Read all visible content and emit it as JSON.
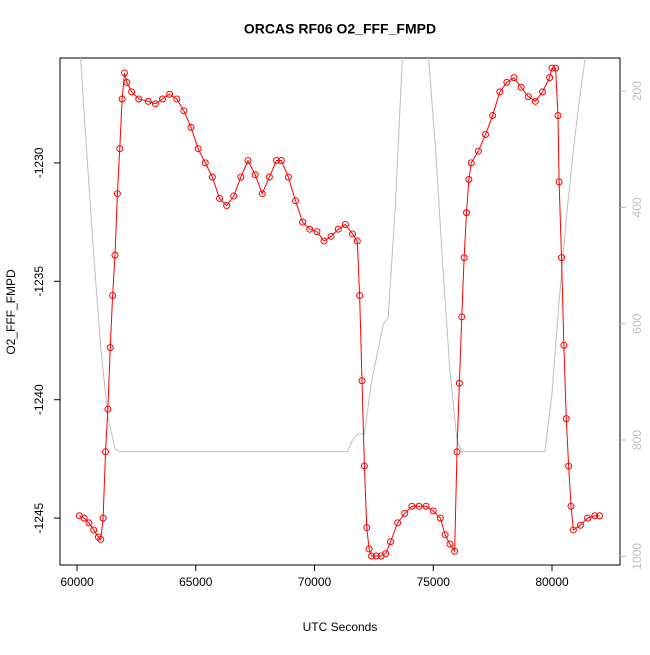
{
  "chart_data": {
    "type": "scatter",
    "title": "ORCAS RF06 O2_FFF_FMPD",
    "x_label": "UTC Seconds",
    "y_label": "O2_FFF_FMPD",
    "xlim": [
      59284,
      82863
    ],
    "xticks": [
      60000,
      65000,
      70000,
      75000,
      80000
    ],
    "ylim": [
      -1246.98,
      -1225.57
    ],
    "yticks": [
      -1245,
      -1240,
      -1235,
      -1230
    ],
    "y2lim": [
      1015,
      143
    ],
    "y2ticks": [
      200,
      400,
      600,
      800,
      1000
    ],
    "series": [
      {
        "color": "#ff0000",
        "marker": "circle",
        "x": [
          60100,
          60300,
          60500,
          60700,
          60900,
          61000,
          61100,
          61200,
          61300,
          61400,
          61500,
          61600,
          61700,
          61800,
          61900,
          62000,
          62100,
          62300,
          62600,
          63000,
          63300,
          63600,
          63900,
          64200,
          64500,
          64800,
          65100,
          65400,
          65700,
          66000,
          66300,
          66600,
          66900,
          67200,
          67500,
          67800,
          68100,
          68400,
          68600,
          68900,
          69200,
          69500,
          69800,
          70100,
          70400,
          70700,
          71000,
          71300,
          71600,
          71800,
          71900,
          72000,
          72100,
          72200,
          72300,
          72400,
          72600,
          72800,
          73000,
          73200,
          73500,
          73800,
          74100,
          74400,
          74700,
          75000,
          75300,
          75500,
          75700,
          75900,
          76000,
          76100,
          76200,
          76300,
          76400,
          76500,
          76600,
          76900,
          77200,
          77500,
          77800,
          78100,
          78400,
          78700,
          79000,
          79300,
          79600,
          79900,
          80000,
          80150,
          80250,
          80300,
          80400,
          80500,
          80600,
          80700,
          80800,
          80900,
          81200,
          81500,
          81800,
          82000
        ],
        "values": [
          -1244.9,
          -1245.0,
          -1245.2,
          -1245.5,
          -1245.8,
          -1245.9,
          -1245.0,
          -1242.2,
          -1240.4,
          -1237.8,
          -1235.6,
          -1233.9,
          -1231.3,
          -1229.4,
          -1227.3,
          -1226.2,
          -1226.6,
          -1227.0,
          -1227.3,
          -1227.4,
          -1227.5,
          -1227.3,
          -1227.1,
          -1227.3,
          -1227.8,
          -1228.5,
          -1229.4,
          -1230.0,
          -1230.6,
          -1231.5,
          -1231.8,
          -1231.4,
          -1230.6,
          -1229.9,
          -1230.5,
          -1231.3,
          -1230.6,
          -1229.9,
          -1229.9,
          -1230.6,
          -1231.6,
          -1232.5,
          -1232.8,
          -1232.9,
          -1233.3,
          -1233.1,
          -1232.8,
          -1232.6,
          -1233.0,
          -1233.3,
          -1235.6,
          -1239.2,
          -1242.8,
          -1245.4,
          -1246.3,
          -1246.6,
          -1246.6,
          -1246.6,
          -1246.5,
          -1246.0,
          -1245.2,
          -1244.8,
          -1244.5,
          -1244.5,
          -1244.5,
          -1244.7,
          -1245.0,
          -1245.7,
          -1246.1,
          -1246.4,
          -1242.2,
          -1239.3,
          -1236.5,
          -1234.0,
          -1232.1,
          -1230.7,
          -1230.0,
          -1229.5,
          -1228.8,
          -1228.0,
          -1227.0,
          -1226.6,
          -1226.4,
          -1226.8,
          -1227.2,
          -1227.4,
          -1227.0,
          -1226.4,
          -1226.0,
          -1226.0,
          -1228.0,
          -1230.8,
          -1234.0,
          -1237.7,
          -1240.8,
          -1242.8,
          -1244.5,
          -1245.5,
          -1245.3,
          -1245.0,
          -1244.9,
          -1244.9
        ]
      },
      {
        "color": "#bebebe",
        "marker": "none",
        "axis": "y2",
        "x": [
          60150,
          60400,
          60700,
          61000,
          61300,
          61600,
          61800,
          71400,
          71600,
          71800,
          72100,
          72400,
          72900,
          73100,
          73400,
          73700,
          74200,
          74800,
          75100,
          75400,
          75700,
          76000,
          76200,
          79700,
          80000,
          80300,
          80600,
          80900,
          81200,
          81400
        ],
        "values": [
          143,
          300,
          480,
          640,
          760,
          815,
          820,
          820,
          800,
          790,
          790,
          700,
          600,
          590,
          400,
          143,
          null,
          143,
          300,
          500,
          680,
          800,
          820,
          820,
          720,
          560,
          420,
          300,
          200,
          143
        ]
      }
    ]
  }
}
